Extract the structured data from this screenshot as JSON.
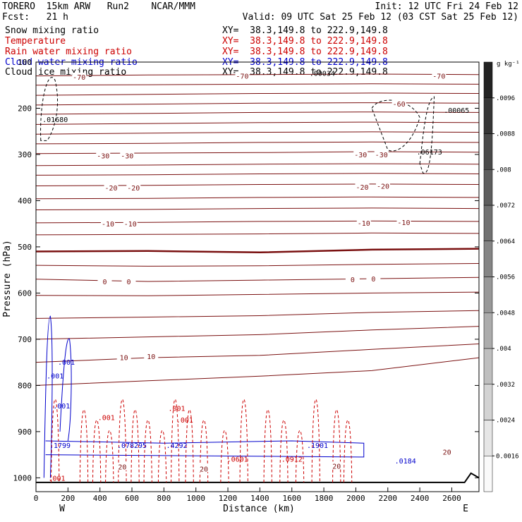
{
  "header": {
    "model": "TORERO  15km ARW   Run2    NCAR/MMM",
    "init": "Init: 12 UTC Fri 24 Feb 12",
    "fcst": "Fcst:   21 h",
    "valid": "Valid: 09 UTC Sat 25 Feb 12 (03 CST Sat 25 Feb 12)"
  },
  "legend": [
    {
      "name": "Snow mixing ratio",
      "xy": "XY=  38.3,149.8 to 222.9,149.8",
      "color": "#000000"
    },
    {
      "name": "Temperature",
      "xy": "XY=  38.3,149.8 to 222.9,149.8",
      "color": "#cc0000"
    },
    {
      "name": "Rain water mixing ratio",
      "xy": "XY=  38.3,149.8 to 222.9,149.8",
      "color": "#cc0000"
    },
    {
      "name": "Cloud water mixing ratio",
      "xy": "XY=  38.3,149.8 to 222.9,149.8",
      "color": "#0000cc"
    },
    {
      "name": "Cloud ice mixing ratio",
      "xy": "XY=  38.3,149.8 to 222.9,149.8",
      "color": "#000000"
    }
  ],
  "chart_data": {
    "type": "cross-section",
    "xlabel": "Distance (km)",
    "ylabel": "Pressure (hPa)",
    "xlim": [
      0,
      2770
    ],
    "ylim": [
      100,
      1030
    ],
    "y_scale": "linear-inverted",
    "x_ticks": [
      "0",
      "200",
      "400",
      "600",
      "800",
      "1000",
      "1200",
      "1400",
      "1600",
      "1800",
      "2000",
      "2200",
      "2400",
      "2600"
    ],
    "y_ticks": [
      "100",
      "200",
      "300",
      "400",
      "500",
      "600",
      "700",
      "800",
      "900",
      "1000"
    ],
    "x_end_labels": [
      "W",
      "E"
    ],
    "colorbar": {
      "unit": "g kg⁻¹",
      "ticks": [
        "0.0016",
        ".0024",
        ".0032",
        ".004",
        ".0048",
        ".0056",
        ".0064",
        ".0072",
        ".008",
        ".0088",
        ".0096"
      ],
      "tick_values": [
        0.0016,
        0.0024,
        0.0032,
        0.004,
        0.0048,
        0.0056,
        0.0064,
        0.0072,
        0.008,
        0.0088,
        0.0096
      ],
      "range": [
        0.0008,
        0.0104
      ]
    },
    "isotherms": [
      {
        "label": "-70",
        "p": [
          130,
          128,
          127,
          126,
          127
        ]
      },
      {
        "label": "",
        "p": [
          150,
          149,
          148,
          147,
          148
        ]
      },
      {
        "label": "",
        "p": [
          172,
          170,
          168,
          167,
          168
        ]
      },
      {
        "label": "-60",
        "p": [
          193,
          191,
          189,
          188,
          189
        ]
      },
      {
        "label": "",
        "p": [
          213,
          211,
          209,
          208,
          209
        ]
      },
      {
        "label": "",
        "p": [
          235,
          233,
          231,
          230,
          231
        ]
      },
      {
        "label": "",
        "p": [
          256,
          254,
          252,
          251,
          252
        ]
      },
      {
        "label": "-30",
        "p": [
          277,
          276,
          274,
          273,
          274
        ]
      },
      {
        "label": "",
        "p": [
          298,
          297,
          296,
          294,
          295
        ]
      },
      {
        "label": "-20",
        "p": [
          324,
          323,
          321,
          320,
          321
        ]
      },
      {
        "label": "",
        "p": [
          345,
          344,
          342,
          341,
          342
        ]
      },
      {
        "label": "",
        "p": [
          368,
          367,
          365,
          364,
          365
        ]
      },
      {
        "label": "-10",
        "p": [
          396,
          395,
          393,
          392,
          393
        ]
      },
      {
        "label": "",
        "p": [
          420,
          419,
          417,
          416,
          417
        ]
      },
      {
        "label": "",
        "p": [
          448,
          447,
          445,
          444,
          445
        ]
      },
      {
        "label": "",
        "p": [
          474,
          473,
          472,
          470,
          471
        ]
      },
      {
        "label": "0",
        "p": [
          510,
          509,
          512,
          506,
          504
        ]
      },
      {
        "label": "",
        "p": [
          540,
          542,
          541,
          538,
          536
        ]
      },
      {
        "label": "",
        "p": [
          570,
          575,
          572,
          569,
          566
        ]
      },
      {
        "label": "",
        "p": [
          605,
          606,
          603,
          600,
          598
        ]
      },
      {
        "label": "10",
        "p": [
          655,
          652,
          649,
          642,
          638
        ]
      },
      {
        "label": "",
        "p": [
          700,
          695,
          690,
          680,
          672
        ]
      },
      {
        "label": "",
        "p": [
          750,
          740,
          735,
          722,
          710
        ]
      },
      {
        "label": "20",
        "p": [
          800,
          790,
          780,
          768,
          740
        ]
      }
    ],
    "temperature_labels": [
      {
        "text": "-70",
        "x": 270,
        "p": 132
      },
      {
        "text": "-70",
        "x": 1290,
        "p": 130
      },
      {
        "text": "-70",
        "x": 2520,
        "p": 130
      },
      {
        "text": "-60",
        "x": 2270,
        "p": 190
      },
      {
        "text": "-30",
        "x": 420,
        "p": 302
      },
      {
        "text": "-30",
        "x": 570,
        "p": 302
      },
      {
        "text": "-30",
        "x": 2030,
        "p": 300
      },
      {
        "text": "-30",
        "x": 2160,
        "p": 300
      },
      {
        "text": "-20",
        "x": 470,
        "p": 372
      },
      {
        "text": "-20",
        "x": 610,
        "p": 372
      },
      {
        "text": "-20",
        "x": 2040,
        "p": 370
      },
      {
        "text": "-20",
        "x": 2170,
        "p": 368
      },
      {
        "text": "-10",
        "x": 450,
        "p": 450
      },
      {
        "text": "-10",
        "x": 590,
        "p": 450
      },
      {
        "text": "-10",
        "x": 2050,
        "p": 448
      },
      {
        "text": "-10",
        "x": 2300,
        "p": 447
      },
      {
        "text": "0",
        "x": 430,
        "p": 575
      },
      {
        "text": "0",
        "x": 580,
        "p": 575
      },
      {
        "text": "0",
        "x": 1980,
        "p": 570
      },
      {
        "text": "0",
        "x": 2110,
        "p": 569
      },
      {
        "text": "10",
        "x": 550,
        "p": 739
      },
      {
        "text": "10",
        "x": 720,
        "p": 737
      },
      {
        "text": "20",
        "x": 540,
        "p": 976
      },
      {
        "text": "20",
        "x": 1050,
        "p": 980
      },
      {
        "text": "20",
        "x": 1880,
        "p": 974
      },
      {
        "text": "20",
        "x": 2570,
        "p": 944
      }
    ],
    "extrema": [
      {
        "text": ".01680",
        "x": 120,
        "p": 230,
        "color": "#000000"
      },
      {
        "text": ".00034",
        "x": 1790,
        "p": 130,
        "color": "#000000"
      },
      {
        "text": ".00065",
        "x": 2630,
        "p": 210,
        "color": "#000000"
      },
      {
        "text": ".06173",
        "x": 2460,
        "p": 300,
        "color": "#000000"
      },
      {
        "text": ".1799",
        "x": 150,
        "p": 935,
        "color": "#0000cc"
      },
      {
        "text": ".078295",
        "x": 600,
        "p": 935,
        "color": "#0000cc"
      },
      {
        "text": ".4292",
        "x": 880,
        "p": 935,
        "color": "#0000cc"
      },
      {
        "text": ".1901",
        "x": 1760,
        "p": 935,
        "color": "#0000cc"
      },
      {
        "text": ".0184",
        "x": 2310,
        "p": 969,
        "color": "#0000cc"
      },
      {
        "text": ".0912",
        "x": 1600,
        "p": 965,
        "color": "#cc0000"
      },
      {
        "text": ".0601",
        "x": 1260,
        "p": 965,
        "color": "#cc0000"
      },
      {
        "text": ".001",
        "x": 190,
        "p": 755,
        "color": "#0000cc"
      },
      {
        "text": ".001",
        "x": 120,
        "p": 785,
        "color": "#0000cc"
      },
      {
        "text": ".001",
        "x": 160,
        "p": 850,
        "color": "#0000cc"
      },
      {
        "text": ".001",
        "x": 880,
        "p": 855,
        "color": "#cc0000"
      },
      {
        "text": ".001",
        "x": 440,
        "p": 875,
        "color": "#cc0000"
      },
      {
        "text": ".001",
        "x": 930,
        "p": 880,
        "color": "#cc0000"
      },
      {
        "text": ".001",
        "x": 130,
        "p": 1006,
        "color": "#cc0000"
      }
    ]
  }
}
